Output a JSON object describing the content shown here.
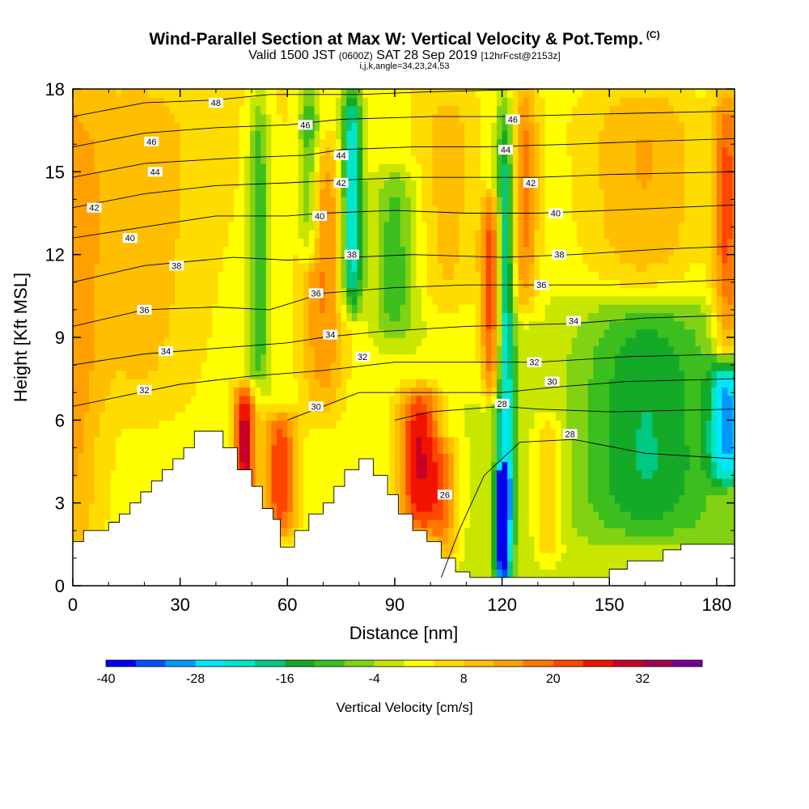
{
  "chart_data": {
    "type": "heatmap",
    "title": "Wind-Parallel Section at Max W: Vertical Velocity & Pot.Temp.",
    "title_mark": "(C)",
    "subtitle_main": "Valid 1500 JST",
    "subtitle_utc": "(0600Z)",
    "subtitle_date": "SAT 28 Sep 2019",
    "subtitle_fcst": "[12hrFcst@2153z]",
    "subtitle2": "i,j,k,angle=34,23,24,53",
    "xlabel": "Distance [nm]",
    "ylabel": "Height [Kft MSL]",
    "xlim": [
      0,
      185
    ],
    "ylim": [
      0,
      18
    ],
    "xticks": [
      "0",
      "30",
      "60",
      "90",
      "120",
      "150",
      "180"
    ],
    "yticks": [
      "0",
      "3",
      "6",
      "9",
      "12",
      "15",
      "18"
    ],
    "colorbar": {
      "label": "Vertical Velocity [cm/s]",
      "ticks": [
        "-40",
        "-28",
        "-16",
        "-4",
        "8",
        "20",
        "32"
      ],
      "bins": [
        -40,
        -36,
        -32,
        -28,
        -24,
        -20,
        -16,
        -12,
        -8,
        -4,
        0,
        4,
        8,
        12,
        16,
        20,
        24,
        28,
        32,
        36,
        40
      ],
      "colors": [
        "#0000f0",
        "#0050ff",
        "#0096ff",
        "#00e6ff",
        "#00e6c8",
        "#00c882",
        "#14aa28",
        "#3cbe1e",
        "#82d214",
        "#c8e600",
        "#ffff00",
        "#ffdc00",
        "#ffbe00",
        "#ffa000",
        "#ff7800",
        "#ff4600",
        "#f01400",
        "#c80028",
        "#a00050",
        "#780096"
      ]
    },
    "terrain": [
      [
        0,
        1.6
      ],
      [
        3,
        1.6
      ],
      [
        3,
        2.0
      ],
      [
        10,
        2.0
      ],
      [
        10,
        2.3
      ],
      [
        13,
        2.3
      ],
      [
        13,
        2.6
      ],
      [
        16,
        2.6
      ],
      [
        16,
        3.0
      ],
      [
        19,
        3.0
      ],
      [
        19,
        3.4
      ],
      [
        22,
        3.4
      ],
      [
        22,
        3.8
      ],
      [
        25,
        3.8
      ],
      [
        25,
        4.2
      ],
      [
        28,
        4.2
      ],
      [
        28,
        4.6
      ],
      [
        31,
        4.6
      ],
      [
        31,
        5.0
      ],
      [
        34,
        5.0
      ],
      [
        34,
        5.6
      ],
      [
        42,
        5.6
      ],
      [
        42,
        5.0
      ],
      [
        46,
        5.0
      ],
      [
        46,
        4.2
      ],
      [
        50,
        4.2
      ],
      [
        50,
        3.6
      ],
      [
        53,
        3.6
      ],
      [
        53,
        2.8
      ],
      [
        56,
        2.8
      ],
      [
        56,
        2.4
      ],
      [
        58,
        2.4
      ],
      [
        58,
        1.4
      ],
      [
        62,
        1.4
      ],
      [
        62,
        2.0
      ],
      [
        66,
        2.0
      ],
      [
        66,
        2.6
      ],
      [
        70,
        2.6
      ],
      [
        70,
        3.0
      ],
      [
        73,
        3.0
      ],
      [
        73,
        3.6
      ],
      [
        76,
        3.6
      ],
      [
        76,
        4.2
      ],
      [
        80,
        4.2
      ],
      [
        80,
        4.6
      ],
      [
        84,
        4.6
      ],
      [
        84,
        4.0
      ],
      [
        88,
        4.0
      ],
      [
        88,
        3.3
      ],
      [
        91,
        3.3
      ],
      [
        91,
        2.6
      ],
      [
        95,
        2.6
      ],
      [
        95,
        2.0
      ],
      [
        99,
        2.0
      ],
      [
        99,
        1.6
      ],
      [
        103,
        1.6
      ],
      [
        103,
        1.0
      ],
      [
        107,
        1.0
      ],
      [
        107,
        0.5
      ],
      [
        111,
        0.5
      ],
      [
        111,
        0.3
      ],
      [
        150,
        0.3
      ],
      [
        150,
        0.6
      ],
      [
        155,
        0.6
      ],
      [
        155,
        0.9
      ],
      [
        165,
        0.9
      ],
      [
        165,
        1.3
      ],
      [
        170,
        1.3
      ],
      [
        170,
        1.5
      ],
      [
        185,
        1.5
      ]
    ],
    "features": [
      {
        "x": 0,
        "z": 10,
        "w": 10,
        "width": 8,
        "ztop": 18,
        "zbot": 0
      },
      {
        "x": 20,
        "z": 12,
        "w": 6,
        "width": 14,
        "ztop": 18,
        "zbot": 6
      },
      {
        "x": 48,
        "z": 5,
        "w": 28,
        "width": 3,
        "ztop": 7,
        "zbot": 3
      },
      {
        "x": 52,
        "z": 11,
        "w": -15,
        "width": 3,
        "ztop": 18,
        "zbot": 7
      },
      {
        "x": 58,
        "z": 4,
        "w": 22,
        "width": 5,
        "ztop": 6,
        "zbot": 2
      },
      {
        "x": 66,
        "z": 16,
        "w": -16,
        "width": 3,
        "ztop": 18,
        "zbot": 12
      },
      {
        "x": 70,
        "z": 11,
        "w": 14,
        "width": 6,
        "ztop": 16,
        "zbot": 6
      },
      {
        "x": 78,
        "z": 14,
        "w": -28,
        "width": 3,
        "ztop": 18,
        "zbot": 10
      },
      {
        "x": 90,
        "z": 12,
        "w": -12,
        "width": 6,
        "ztop": 15,
        "zbot": 9
      },
      {
        "x": 97,
        "z": 4.5,
        "w": 28,
        "width": 6,
        "ztop": 7,
        "zbot": 2
      },
      {
        "x": 104,
        "z": 3,
        "w": 14,
        "width": 4,
        "ztop": 5,
        "zbot": 1
      },
      {
        "x": 105,
        "z": 14,
        "w": 8,
        "width": 8,
        "ztop": 18,
        "zbot": 10
      },
      {
        "x": 117,
        "z": 11,
        "w": 22,
        "width": 3,
        "ztop": 14,
        "zbot": 7
      },
      {
        "x": 121,
        "z": 9,
        "w": -26,
        "width": 2.5,
        "ztop": 18,
        "zbot": 0
      },
      {
        "x": 120,
        "z": 2,
        "w": -36,
        "width": 2,
        "ztop": 4,
        "zbot": 0.5
      },
      {
        "x": 126,
        "z": 14,
        "w": 16,
        "width": 4,
        "ztop": 18,
        "zbot": 10
      },
      {
        "x": 133,
        "z": 4,
        "w": 10,
        "width": 4,
        "ztop": 6,
        "zbot": 1
      },
      {
        "x": 160,
        "z": 7,
        "w": -14,
        "width": 18,
        "ztop": 10,
        "zbot": 2
      },
      {
        "x": 183,
        "z": 6,
        "w": -24,
        "width": 5,
        "ztop": 8,
        "zbot": 4
      },
      {
        "x": 160,
        "z": 15,
        "w": 12,
        "width": 18,
        "ztop": 18,
        "zbot": 11
      },
      {
        "x": 183,
        "z": 12,
        "w": 20,
        "width": 4,
        "ztop": 18,
        "zbot": 8
      }
    ],
    "theta_contours": [
      {
        "label": "26",
        "points": [
          [
            103,
            0.3
          ],
          [
            108,
            2.0
          ],
          [
            115,
            4.0
          ],
          [
            125,
            5.2
          ],
          [
            140,
            5.3
          ],
          [
            160,
            4.8
          ],
          [
            185,
            4.6
          ]
        ]
      },
      {
        "label": "28",
        "points": [
          [
            90,
            6.0
          ],
          [
            100,
            6.3
          ],
          [
            110,
            6.4
          ],
          [
            120,
            6.5
          ],
          [
            130,
            6.4
          ],
          [
            150,
            6.3
          ],
          [
            185,
            6.4
          ]
        ]
      },
      {
        "label": "30",
        "points": [
          [
            60,
            6.0
          ],
          [
            70,
            6.5
          ],
          [
            80,
            7.0
          ],
          [
            100,
            7.0
          ],
          [
            120,
            7.0
          ],
          [
            135,
            7.2
          ],
          [
            155,
            7.4
          ],
          [
            185,
            7.5
          ]
        ]
      },
      {
        "label": "32",
        "points": [
          [
            0,
            6.5
          ],
          [
            15,
            6.9
          ],
          [
            30,
            7.3
          ],
          [
            50,
            7.6
          ],
          [
            70,
            7.8
          ],
          [
            90,
            8.1
          ],
          [
            110,
            8.1
          ],
          [
            130,
            8.1
          ],
          [
            155,
            8.3
          ],
          [
            185,
            8.4
          ]
        ]
      },
      {
        "label": "34",
        "points": [
          [
            0,
            8.0
          ],
          [
            20,
            8.4
          ],
          [
            40,
            8.6
          ],
          [
            60,
            8.8
          ],
          [
            70,
            9.0
          ],
          [
            85,
            9.2
          ],
          [
            110,
            9.4
          ],
          [
            140,
            9.5
          ],
          [
            160,
            9.7
          ],
          [
            185,
            9.8
          ]
        ]
      },
      {
        "label": "36",
        "points": [
          [
            0,
            9.4
          ],
          [
            20,
            10.0
          ],
          [
            40,
            10.1
          ],
          [
            55,
            10.0
          ],
          [
            70,
            10.6
          ],
          [
            90,
            10.8
          ],
          [
            110,
            10.9
          ],
          [
            125,
            10.9
          ],
          [
            150,
            10.9
          ],
          [
            185,
            11.1
          ]
        ]
      },
      {
        "label": "38",
        "points": [
          [
            0,
            11.0
          ],
          [
            20,
            11.6
          ],
          [
            45,
            11.9
          ],
          [
            60,
            11.8
          ],
          [
            78,
            11.9
          ],
          [
            95,
            12.0
          ],
          [
            120,
            11.9
          ],
          [
            140,
            12.0
          ],
          [
            165,
            12.2
          ],
          [
            185,
            12.3
          ]
        ]
      },
      {
        "label": "40",
        "points": [
          [
            0,
            12.6
          ],
          [
            20,
            13.0
          ],
          [
            40,
            13.4
          ],
          [
            60,
            13.4
          ],
          [
            70,
            13.5
          ],
          [
            90,
            13.6
          ],
          [
            110,
            13.5
          ],
          [
            130,
            13.5
          ],
          [
            150,
            13.6
          ],
          [
            185,
            13.8
          ]
        ]
      },
      {
        "label": "42",
        "points": [
          [
            0,
            13.7
          ],
          [
            20,
            14.2
          ],
          [
            40,
            14.5
          ],
          [
            60,
            14.6
          ],
          [
            75,
            14.7
          ],
          [
            95,
            14.8
          ],
          [
            115,
            14.8
          ],
          [
            130,
            14.8
          ],
          [
            150,
            14.9
          ],
          [
            185,
            15.0
          ]
        ]
      },
      {
        "label": "44",
        "points": [
          [
            0,
            14.8
          ],
          [
            20,
            15.3
          ],
          [
            45,
            15.5
          ],
          [
            65,
            15.6
          ],
          [
            75,
            15.8
          ],
          [
            95,
            15.9
          ],
          [
            115,
            15.9
          ],
          [
            140,
            16.0
          ],
          [
            160,
            16.1
          ],
          [
            185,
            16.2
          ]
        ]
      },
      {
        "label": "46",
        "points": [
          [
            0,
            15.9
          ],
          [
            20,
            16.4
          ],
          [
            40,
            16.6
          ],
          [
            60,
            16.7
          ],
          [
            75,
            16.9
          ],
          [
            100,
            17.0
          ],
          [
            120,
            17.0
          ],
          [
            150,
            17.1
          ],
          [
            185,
            17.2
          ]
        ]
      },
      {
        "label": "48",
        "points": [
          [
            0,
            17.0
          ],
          [
            20,
            17.5
          ],
          [
            40,
            17.6
          ],
          [
            55,
            17.8
          ],
          [
            80,
            17.8
          ],
          [
            100,
            17.9
          ],
          [
            130,
            18.0
          ],
          [
            185,
            18.0
          ]
        ]
      }
    ],
    "contour_labels": [
      {
        "text": "48",
        "x": 40,
        "y": 17.5
      },
      {
        "text": "46",
        "x": 22,
        "y": 16.1
      },
      {
        "text": "46",
        "x": 65,
        "y": 16.7
      },
      {
        "text": "46",
        "x": 123,
        "y": 16.9
      },
      {
        "text": "44",
        "x": 23,
        "y": 15.0
      },
      {
        "text": "44",
        "x": 75,
        "y": 15.6
      },
      {
        "text": "44",
        "x": 121,
        "y": 15.8
      },
      {
        "text": "42",
        "x": 6,
        "y": 13.7
      },
      {
        "text": "42",
        "x": 75,
        "y": 14.6
      },
      {
        "text": "42",
        "x": 128,
        "y": 14.6
      },
      {
        "text": "40",
        "x": 16,
        "y": 12.6
      },
      {
        "text": "40",
        "x": 69,
        "y": 13.4
      },
      {
        "text": "40",
        "x": 135,
        "y": 13.5
      },
      {
        "text": "38",
        "x": 29,
        "y": 11.6
      },
      {
        "text": "38",
        "x": 78,
        "y": 12.0
      },
      {
        "text": "38",
        "x": 136,
        "y": 12.0
      },
      {
        "text": "36",
        "x": 20,
        "y": 10.0
      },
      {
        "text": "36",
        "x": 68,
        "y": 10.6
      },
      {
        "text": "36",
        "x": 131,
        "y": 10.9
      },
      {
        "text": "34",
        "x": 26,
        "y": 8.5
      },
      {
        "text": "34",
        "x": 72,
        "y": 9.1
      },
      {
        "text": "34",
        "x": 140,
        "y": 9.6
      },
      {
        "text": "32",
        "x": 20,
        "y": 7.1
      },
      {
        "text": "32",
        "x": 81,
        "y": 8.3
      },
      {
        "text": "32",
        "x": 129,
        "y": 8.1
      },
      {
        "text": "30",
        "x": 68,
        "y": 6.5
      },
      {
        "text": "30",
        "x": 134,
        "y": 7.4
      },
      {
        "text": "28",
        "x": 120,
        "y": 6.6
      },
      {
        "text": "28",
        "x": 139,
        "y": 5.5
      },
      {
        "text": "26",
        "x": 104,
        "y": 3.3
      }
    ]
  }
}
